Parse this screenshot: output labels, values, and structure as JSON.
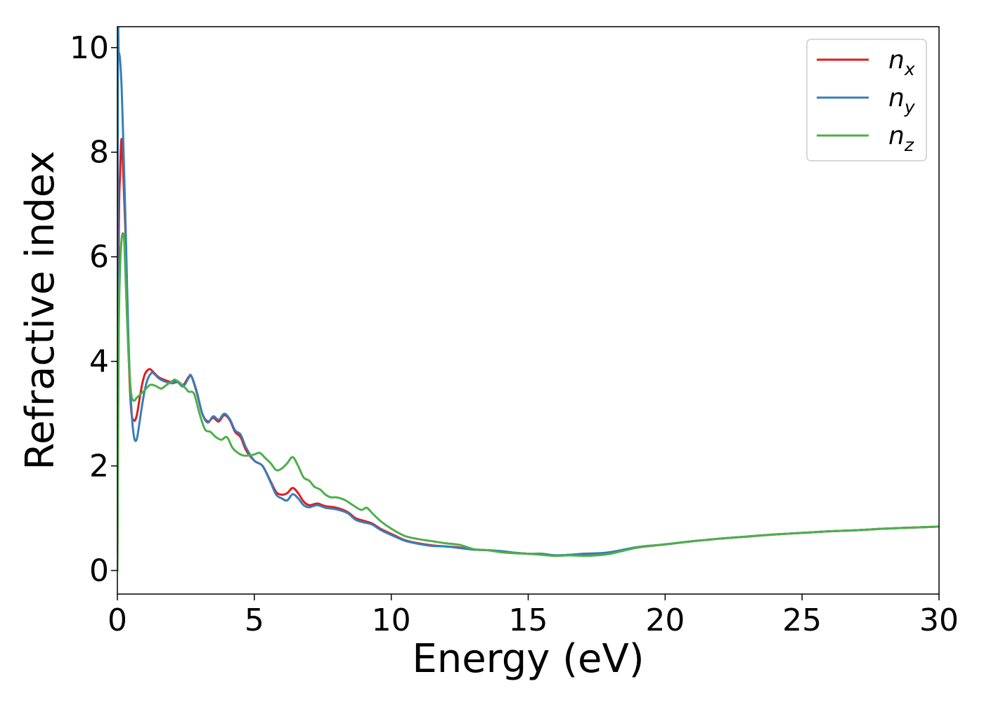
{
  "chart_data": {
    "type": "line",
    "xlabel": "Energy (eV)",
    "ylabel": "Refractive index",
    "xlim": [
      0,
      30
    ],
    "ylim": [
      -0.45,
      10.4
    ],
    "xticks": [
      0,
      5,
      10,
      15,
      20,
      25,
      30
    ],
    "xtick_labels": [
      "0",
      "5",
      "10",
      "15",
      "20",
      "25",
      "30"
    ],
    "yticks": [
      0,
      2,
      4,
      6,
      8,
      10
    ],
    "ytick_labels": [
      "0",
      "2",
      "4",
      "6",
      "8",
      "10"
    ],
    "grid": false,
    "legend_position": "top-right",
    "series": [
      {
        "name": "n_x",
        "legend": {
          "base": "n",
          "sub": "x"
        },
        "color": "#e41a1c",
        "x": [
          0.0,
          0.05,
          0.1,
          0.15,
          0.2,
          0.3,
          0.4,
          0.5,
          0.6,
          0.7,
          0.8,
          0.9,
          1.0,
          1.1,
          1.2,
          1.3,
          1.5,
          1.7,
          2.0,
          2.2,
          2.4,
          2.6,
          2.7,
          2.9,
          3.1,
          3.3,
          3.5,
          3.7,
          3.9,
          4.1,
          4.3,
          4.5,
          4.7,
          5.0,
          5.3,
          5.6,
          5.8,
          6.0,
          6.2,
          6.4,
          6.6,
          6.8,
          7.0,
          7.3,
          7.6,
          8.0,
          8.4,
          8.7,
          9.0,
          9.3,
          9.6,
          10.0,
          10.5,
          11.0,
          11.5,
          12.0,
          12.5,
          13.0,
          13.5,
          14.0,
          14.5,
          15.0,
          15.5,
          16.0,
          16.5,
          17.0,
          17.5,
          18.0,
          19.0,
          20.0,
          21.0,
          22.0,
          23.0,
          24.0,
          25.0,
          26.0,
          27.0,
          28.0,
          29.0,
          30.0
        ],
        "y": [
          0.0,
          6.3,
          7.6,
          8.25,
          7.8,
          6.4,
          4.3,
          3.1,
          2.87,
          2.95,
          3.25,
          3.55,
          3.75,
          3.83,
          3.85,
          3.8,
          3.7,
          3.65,
          3.6,
          3.62,
          3.55,
          3.7,
          3.72,
          3.4,
          3.0,
          2.85,
          2.92,
          2.85,
          2.97,
          2.88,
          2.65,
          2.55,
          2.3,
          2.1,
          2.0,
          1.7,
          1.5,
          1.45,
          1.48,
          1.58,
          1.48,
          1.32,
          1.25,
          1.28,
          1.23,
          1.2,
          1.12,
          1.0,
          0.95,
          0.9,
          0.8,
          0.7,
          0.58,
          0.52,
          0.48,
          0.46,
          0.44,
          0.4,
          0.39,
          0.37,
          0.34,
          0.32,
          0.31,
          0.29,
          0.3,
          0.31,
          0.32,
          0.35,
          0.44,
          0.5,
          0.56,
          0.61,
          0.65,
          0.69,
          0.72,
          0.75,
          0.77,
          0.8,
          0.82,
          0.84
        ]
      },
      {
        "name": "n_y",
        "legend": {
          "base": "n",
          "sub": "y"
        },
        "color": "#377eb8",
        "x": [
          0.0,
          0.02,
          0.05,
          0.1,
          0.15,
          0.2,
          0.3,
          0.4,
          0.5,
          0.6,
          0.7,
          0.8,
          0.9,
          1.0,
          1.1,
          1.2,
          1.3,
          1.5,
          1.7,
          2.0,
          2.2,
          2.4,
          2.6,
          2.7,
          2.9,
          3.1,
          3.3,
          3.5,
          3.7,
          3.9,
          4.1,
          4.3,
          4.5,
          4.7,
          5.0,
          5.3,
          5.6,
          5.8,
          6.0,
          6.2,
          6.4,
          6.6,
          6.8,
          7.0,
          7.3,
          7.6,
          8.0,
          8.4,
          8.7,
          9.0,
          9.3,
          9.6,
          10.0,
          10.5,
          11.0,
          11.5,
          12.0,
          12.5,
          13.0,
          13.5,
          14.0,
          14.5,
          15.0,
          15.5,
          16.0,
          16.5,
          17.0,
          17.5,
          18.0,
          19.0,
          20.0,
          21.0,
          22.0,
          23.0,
          24.0,
          25.0,
          26.0,
          27.0,
          28.0,
          29.0,
          30.0
        ],
        "y": [
          0.0,
          9.6,
          9.9,
          9.75,
          9.3,
          8.5,
          6.6,
          4.5,
          3.2,
          2.58,
          2.5,
          2.8,
          3.15,
          3.45,
          3.65,
          3.75,
          3.78,
          3.68,
          3.62,
          3.58,
          3.6,
          3.52,
          3.68,
          3.72,
          3.42,
          3.0,
          2.83,
          2.95,
          2.88,
          3.0,
          2.9,
          2.68,
          2.6,
          2.35,
          2.1,
          2.0,
          1.68,
          1.45,
          1.38,
          1.34,
          1.46,
          1.38,
          1.25,
          1.21,
          1.25,
          1.2,
          1.17,
          1.1,
          0.97,
          0.92,
          0.88,
          0.78,
          0.68,
          0.57,
          0.51,
          0.47,
          0.46,
          0.43,
          0.4,
          0.39,
          0.37,
          0.34,
          0.32,
          0.32,
          0.29,
          0.3,
          0.32,
          0.33,
          0.35,
          0.45,
          0.5,
          0.56,
          0.61,
          0.65,
          0.69,
          0.72,
          0.75,
          0.77,
          0.8,
          0.82,
          0.84
        ]
      },
      {
        "name": "n_z",
        "legend": {
          "base": "n",
          "sub": "z"
        },
        "color": "#4daf4a",
        "x": [
          0.0,
          0.05,
          0.1,
          0.15,
          0.2,
          0.25,
          0.3,
          0.4,
          0.5,
          0.6,
          0.7,
          0.8,
          0.9,
          1.0,
          1.2,
          1.4,
          1.6,
          1.8,
          2.0,
          2.1,
          2.3,
          2.5,
          2.6,
          2.8,
          3.0,
          3.2,
          3.4,
          3.6,
          3.8,
          4.0,
          4.2,
          4.4,
          4.6,
          4.8,
          5.0,
          5.2,
          5.4,
          5.6,
          5.8,
          6.0,
          6.2,
          6.4,
          6.6,
          6.8,
          7.0,
          7.2,
          7.4,
          7.6,
          7.8,
          8.0,
          8.3,
          8.6,
          8.9,
          9.1,
          9.3,
          9.6,
          10.0,
          10.5,
          11.0,
          11.5,
          12.0,
          12.5,
          13.0,
          13.5,
          14.0,
          14.5,
          15.0,
          15.5,
          16.0,
          16.5,
          17.0,
          17.5,
          18.0,
          19.0,
          20.0,
          21.0,
          22.0,
          23.0,
          24.0,
          25.0,
          26.0,
          27.0,
          28.0,
          29.0,
          30.0
        ],
        "y": [
          0.0,
          4.5,
          5.8,
          6.3,
          6.45,
          6.3,
          5.6,
          4.2,
          3.4,
          3.25,
          3.3,
          3.35,
          3.4,
          3.45,
          3.55,
          3.53,
          3.48,
          3.55,
          3.62,
          3.65,
          3.58,
          3.48,
          3.42,
          3.38,
          3.0,
          2.7,
          2.65,
          2.55,
          2.5,
          2.55,
          2.35,
          2.25,
          2.2,
          2.2,
          2.22,
          2.25,
          2.15,
          2.05,
          1.92,
          1.95,
          2.05,
          2.17,
          2.0,
          1.78,
          1.72,
          1.6,
          1.55,
          1.45,
          1.4,
          1.4,
          1.35,
          1.25,
          1.16,
          1.2,
          1.1,
          0.95,
          0.8,
          0.66,
          0.6,
          0.56,
          0.52,
          0.49,
          0.41,
          0.39,
          0.35,
          0.33,
          0.32,
          0.3,
          0.28,
          0.29,
          0.28,
          0.29,
          0.32,
          0.44,
          0.5,
          0.56,
          0.61,
          0.65,
          0.69,
          0.72,
          0.75,
          0.77,
          0.8,
          0.82,
          0.84
        ]
      }
    ]
  }
}
